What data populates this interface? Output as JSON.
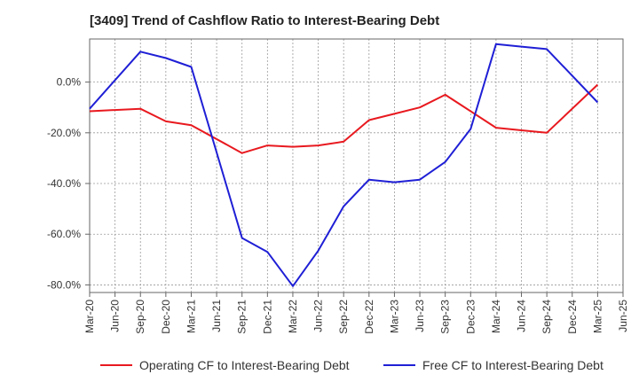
{
  "chart_data": {
    "type": "line",
    "title": "[3409]  Trend of Cashflow Ratio to Interest-Bearing Debt",
    "xlabel": "",
    "ylabel": "",
    "x_ticks": [
      "Mar-20",
      "Jun-20",
      "Sep-20",
      "Dec-20",
      "Mar-21",
      "Jun-21",
      "Sep-21",
      "Dec-21",
      "Mar-22",
      "Jun-22",
      "Sep-22",
      "Dec-22",
      "Mar-23",
      "Jun-23",
      "Sep-23",
      "Dec-23",
      "Mar-24",
      "Jun-24",
      "Sep-24",
      "Dec-24",
      "Mar-25",
      "Jun-25"
    ],
    "y_ticks": [
      0,
      -20,
      -40,
      -60,
      -80
    ],
    "y_tick_labels": [
      "0.0%",
      "-20.0%",
      "-40.0%",
      "-60.0%",
      "-80.0%"
    ],
    "ylim": [
      -83,
      17
    ],
    "grid": true,
    "legend_position": "bottom",
    "series": [
      {
        "name": "Operating CF to Interest-Bearing Debt",
        "color": "#e8191f",
        "points": [
          {
            "x": "Mar-20",
            "y": -11.5
          },
          {
            "x": "Sep-20",
            "y": -10.5
          },
          {
            "x": "Dec-20",
            "y": -15.5
          },
          {
            "x": "Mar-21",
            "y": -17.0
          },
          {
            "x": "Sep-21",
            "y": -28.0
          },
          {
            "x": "Dec-21",
            "y": -25.0
          },
          {
            "x": "Mar-22",
            "y": -25.5
          },
          {
            "x": "Jun-22",
            "y": -25.0
          },
          {
            "x": "Sep-22",
            "y": -23.5
          },
          {
            "x": "Dec-22",
            "y": -15.0
          },
          {
            "x": "Mar-23",
            "y": -12.5
          },
          {
            "x": "Jun-23",
            "y": -10.0
          },
          {
            "x": "Sep-23",
            "y": -5.0
          },
          {
            "x": "Mar-24",
            "y": -18.0
          },
          {
            "x": "Jun-24",
            "y": -19.0
          },
          {
            "x": "Sep-24",
            "y": -20.0
          },
          {
            "x": "Mar-25",
            "y": -1.0
          }
        ]
      },
      {
        "name": "Free CF to Interest-Bearing Debt",
        "color": "#1f1fd6",
        "points": [
          {
            "x": "Mar-20",
            "y": -10.5
          },
          {
            "x": "Sep-20",
            "y": 12.0
          },
          {
            "x": "Dec-20",
            "y": 9.5
          },
          {
            "x": "Mar-21",
            "y": 6.0
          },
          {
            "x": "Sep-21",
            "y": -61.5
          },
          {
            "x": "Dec-21",
            "y": -67.0
          },
          {
            "x": "Mar-22",
            "y": -80.5
          },
          {
            "x": "Jun-22",
            "y": -66.5
          },
          {
            "x": "Sep-22",
            "y": -49.0
          },
          {
            "x": "Dec-22",
            "y": -38.5
          },
          {
            "x": "Mar-23",
            "y": -39.5
          },
          {
            "x": "Jun-23",
            "y": -38.5
          },
          {
            "x": "Sep-23",
            "y": -31.5
          },
          {
            "x": "Dec-23",
            "y": -18.5
          },
          {
            "x": "Mar-24",
            "y": 15.0
          },
          {
            "x": "Jun-24",
            "y": 14.0
          },
          {
            "x": "Sep-24",
            "y": 13.0
          },
          {
            "x": "Mar-25",
            "y": -8.0
          }
        ]
      }
    ]
  }
}
